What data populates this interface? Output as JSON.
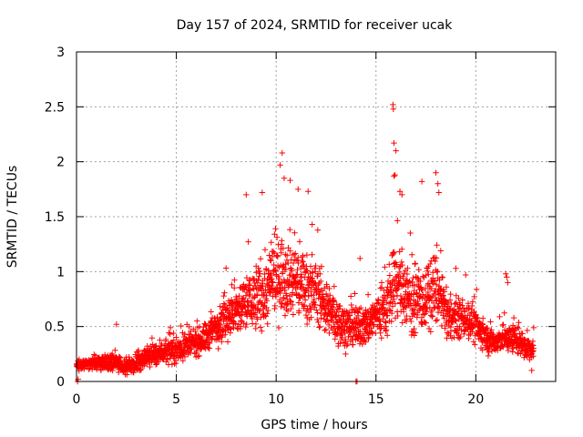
{
  "chart_data": {
    "type": "scatter",
    "title": "Day 157 of 2024, SRMTID for receiver ucak",
    "xlabel": "GPS time / hours",
    "ylabel": "SRMTID / TECUs",
    "xlim": [
      0,
      24
    ],
    "ylim": [
      0,
      3
    ],
    "xticks": [
      0,
      5,
      10,
      15,
      20
    ],
    "yticks": [
      0,
      0.5,
      1,
      1.5,
      2,
      2.5,
      3
    ],
    "xtick_labels": [
      "0",
      "5",
      "10",
      "15",
      "20"
    ],
    "ytick_labels": [
      "0",
      "0.5",
      "1",
      "1.5",
      "2",
      "2.5",
      "3"
    ],
    "grid": true,
    "marker": "+",
    "color": "#ff0000",
    "series": [
      {
        "name": "SRMTID",
        "envelope": {
          "x": [
            0.0,
            0.5,
            1.0,
            1.5,
            2.0,
            2.5,
            3.0,
            3.5,
            4.0,
            4.5,
            5.0,
            5.5,
            6.0,
            6.5,
            7.0,
            7.5,
            8.0,
            8.5,
            9.0,
            9.5,
            10.0,
            10.5,
            11.0,
            11.5,
            12.0,
            12.5,
            13.0,
            13.5,
            14.0,
            14.5,
            15.0,
            15.5,
            16.0,
            16.5,
            17.0,
            17.5,
            18.0,
            18.5,
            19.0,
            19.5,
            20.0,
            20.5,
            21.0,
            21.5,
            22.0,
            22.5,
            22.9
          ],
          "mean": [
            0.15,
            0.16,
            0.17,
            0.16,
            0.18,
            0.13,
            0.16,
            0.22,
            0.26,
            0.27,
            0.28,
            0.33,
            0.35,
            0.4,
            0.5,
            0.6,
            0.62,
            0.72,
            0.75,
            0.82,
            0.95,
            0.98,
            0.92,
            0.88,
            0.82,
            0.68,
            0.55,
            0.5,
            0.48,
            0.52,
            0.6,
            0.68,
            0.9,
            0.82,
            0.7,
            0.75,
            0.85,
            0.62,
            0.55,
            0.58,
            0.5,
            0.4,
            0.35,
            0.4,
            0.38,
            0.32,
            0.28
          ],
          "spread": [
            0.05,
            0.05,
            0.06,
            0.07,
            0.1,
            0.06,
            0.08,
            0.1,
            0.12,
            0.1,
            0.12,
            0.16,
            0.12,
            0.15,
            0.18,
            0.22,
            0.25,
            0.32,
            0.32,
            0.35,
            0.38,
            0.4,
            0.35,
            0.32,
            0.3,
            0.25,
            0.22,
            0.2,
            0.2,
            0.2,
            0.22,
            0.3,
            0.4,
            0.35,
            0.3,
            0.32,
            0.35,
            0.22,
            0.18,
            0.18,
            0.18,
            0.14,
            0.12,
            0.14,
            0.14,
            0.12,
            0.1
          ]
        },
        "outliers": [
          {
            "x": 0.05,
            "y": 0.0
          },
          {
            "x": 0.08,
            "y": 0.02
          },
          {
            "x": 2.0,
            "y": 0.52
          },
          {
            "x": 8.5,
            "y": 1.7
          },
          {
            "x": 9.3,
            "y": 1.72
          },
          {
            "x": 10.2,
            "y": 1.97
          },
          {
            "x": 10.3,
            "y": 2.08
          },
          {
            "x": 10.4,
            "y": 1.85
          },
          {
            "x": 10.7,
            "y": 1.83
          },
          {
            "x": 11.1,
            "y": 1.75
          },
          {
            "x": 11.6,
            "y": 1.73
          },
          {
            "x": 14.0,
            "y": 0.0
          },
          {
            "x": 14.05,
            "y": 0.0
          },
          {
            "x": 14.2,
            "y": 1.12
          },
          {
            "x": 15.85,
            "y": 2.52
          },
          {
            "x": 15.87,
            "y": 2.48
          },
          {
            "x": 15.9,
            "y": 2.17
          },
          {
            "x": 16.0,
            "y": 2.1
          },
          {
            "x": 15.95,
            "y": 1.88
          },
          {
            "x": 15.9,
            "y": 1.87
          },
          {
            "x": 16.2,
            "y": 1.73
          },
          {
            "x": 16.3,
            "y": 1.7
          },
          {
            "x": 17.3,
            "y": 1.82
          },
          {
            "x": 18.0,
            "y": 1.9
          },
          {
            "x": 18.1,
            "y": 1.8
          },
          {
            "x": 18.15,
            "y": 1.72
          },
          {
            "x": 19.0,
            "y": 1.03
          },
          {
            "x": 21.5,
            "y": 0.98
          },
          {
            "x": 21.55,
            "y": 0.95
          },
          {
            "x": 21.6,
            "y": 0.9
          },
          {
            "x": 22.9,
            "y": 0.49
          },
          {
            "x": 22.8,
            "y": 0.1
          }
        ]
      }
    ]
  }
}
